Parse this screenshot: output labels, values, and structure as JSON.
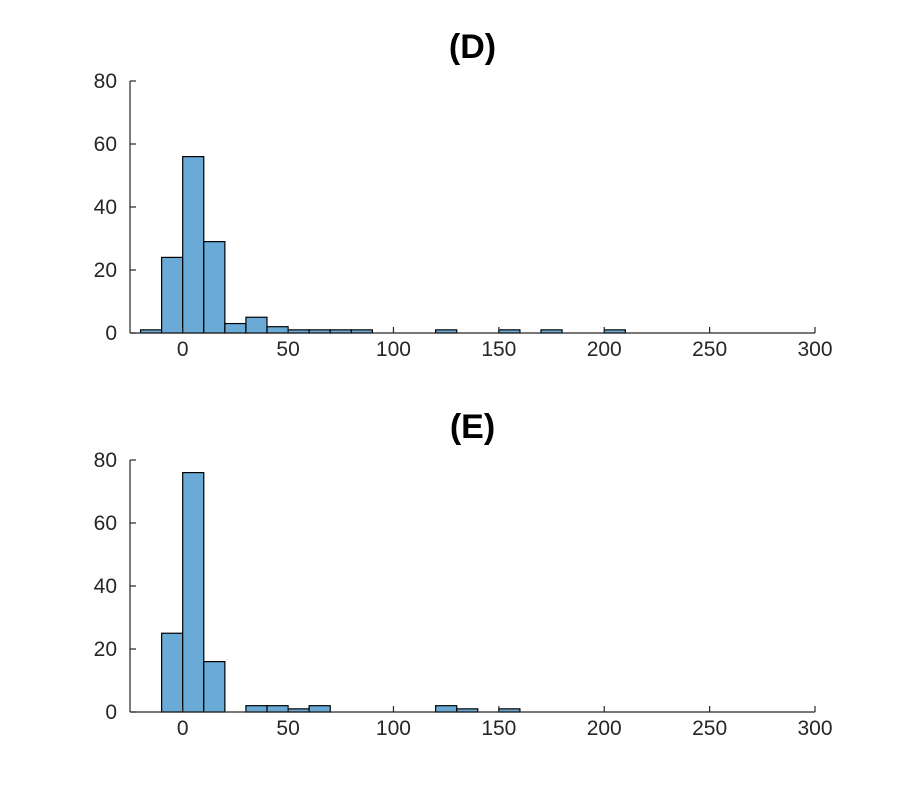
{
  "page": {
    "background_color": "#ffffff"
  },
  "chart_data": [
    {
      "type": "histogram",
      "title": "(D)",
      "xlabel": "",
      "ylabel": "",
      "bin_width": 10,
      "bin_starts": [
        -20,
        -10,
        0,
        10,
        20,
        30,
        40,
        50,
        60,
        70,
        80,
        120,
        150,
        170,
        200
      ],
      "counts": [
        1,
        24,
        56,
        29,
        3,
        5,
        2,
        1,
        1,
        1,
        1,
        1,
        1,
        1,
        1
      ],
      "xlim": [
        -25,
        300
      ],
      "ylim": [
        0,
        80
      ],
      "x_ticks": [
        0,
        50,
        100,
        150,
        200,
        250,
        300
      ],
      "y_ticks": [
        0,
        20,
        40,
        60,
        80
      ],
      "grid": false,
      "legend": null,
      "bar_fill_color": "#69ABD6",
      "bar_edge_color": "#000000",
      "axis_color": "#262626",
      "tick_label_color": "#262626"
    },
    {
      "type": "histogram",
      "title": "(E)",
      "xlabel": "",
      "ylabel": "",
      "bin_width": 10,
      "bin_starts": [
        -10,
        0,
        10,
        30,
        40,
        50,
        60,
        120,
        130,
        150
      ],
      "counts": [
        25,
        76,
        16,
        2,
        2,
        1,
        2,
        2,
        1,
        1
      ],
      "xlim": [
        -25,
        300
      ],
      "ylim": [
        0,
        80
      ],
      "x_ticks": [
        0,
        50,
        100,
        150,
        200,
        250,
        300
      ],
      "y_ticks": [
        0,
        20,
        40,
        60,
        80
      ],
      "grid": false,
      "legend": null,
      "bar_fill_color": "#69ABD6",
      "bar_edge_color": "#000000",
      "axis_color": "#262626",
      "tick_label_color": "#262626"
    }
  ]
}
